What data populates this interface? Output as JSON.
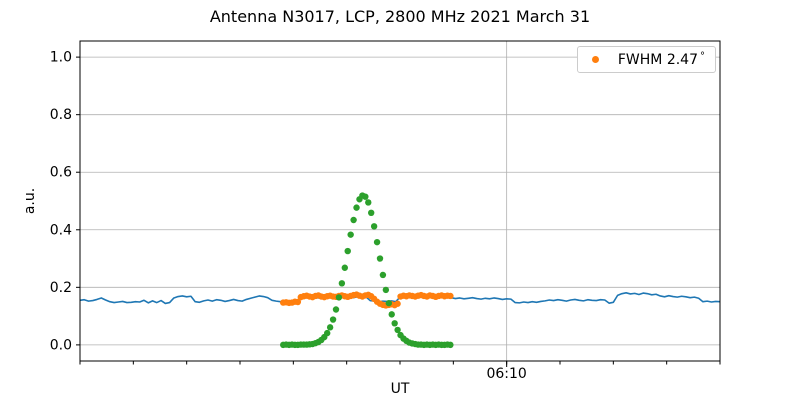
{
  "figure": {
    "title": "Antenna N3017, LCP, 2800 MHz 2021 March 31",
    "background": "#ffffff"
  },
  "legend": {
    "label": "FWHM 2.47",
    "degree_symbol": "°",
    "marker_color": "#ff7f0e",
    "position": "upper-right"
  },
  "chart_data": {
    "type": "line",
    "title": "Antenna N3017, LCP, 2800 MHz 2021 March 31",
    "xlabel": "UT",
    "ylabel": "a.u.",
    "x_unit": "minutes after 06:00 UT",
    "xlim": [
      2.0,
      14.0
    ],
    "ylim": [
      -0.056,
      1.056
    ],
    "grid": true,
    "grid_color": "#b0b0b0",
    "spine_color": "#000000",
    "y_ticks": [
      {
        "value": 0.0,
        "label": "0.0"
      },
      {
        "value": 0.2,
        "label": "0.2"
      },
      {
        "value": 0.4,
        "label": "0.4"
      },
      {
        "value": 0.6,
        "label": "0.6"
      },
      {
        "value": 0.8,
        "label": "0.8"
      },
      {
        "value": 1.0,
        "label": "1.0"
      }
    ],
    "x_axis": {
      "major_ticks": [
        {
          "value": 10.0,
          "label": "06:10"
        }
      ],
      "minor_tick_values": [
        2,
        3,
        4,
        5,
        6,
        7,
        8,
        9,
        10,
        11,
        12,
        13,
        14
      ]
    },
    "series": [
      {
        "name": "raw-signal-line",
        "type": "line",
        "color": "#1f77b4",
        "line_width": 1.6,
        "x_start": 2.0,
        "x_step": 0.08,
        "y": [
          0.155,
          0.157,
          0.152,
          0.154,
          0.158,
          0.163,
          0.156,
          0.15,
          0.147,
          0.149,
          0.151,
          0.147,
          0.148,
          0.15,
          0.149,
          0.155,
          0.146,
          0.153,
          0.147,
          0.154,
          0.144,
          0.147,
          0.163,
          0.168,
          0.17,
          0.167,
          0.169,
          0.15,
          0.148,
          0.153,
          0.156,
          0.152,
          0.157,
          0.155,
          0.151,
          0.154,
          0.158,
          0.154,
          0.152,
          0.158,
          0.162,
          0.166,
          0.17,
          0.168,
          0.164,
          0.155,
          0.152,
          0.15,
          0.153,
          0.15,
          0.149,
          0.151,
          0.165,
          0.166,
          0.168,
          0.164,
          0.163,
          0.166,
          0.168,
          0.165,
          0.164,
          0.166,
          0.168,
          0.166,
          0.164,
          0.167,
          0.169,
          0.167,
          0.154,
          0.152,
          0.15,
          0.152,
          0.151,
          0.153,
          0.15,
          0.166,
          0.168,
          0.165,
          0.167,
          0.169,
          0.166,
          0.164,
          0.167,
          0.168,
          0.166,
          0.169,
          0.167,
          0.164,
          0.161,
          0.163,
          0.16,
          0.162,
          0.164,
          0.161,
          0.159,
          0.162,
          0.16,
          0.163,
          0.161,
          0.158,
          0.16,
          0.159,
          0.147,
          0.146,
          0.149,
          0.147,
          0.15,
          0.148,
          0.151,
          0.153,
          0.156,
          0.154,
          0.157,
          0.155,
          0.152,
          0.156,
          0.158,
          0.155,
          0.153,
          0.157,
          0.155,
          0.154,
          0.157,
          0.156,
          0.145,
          0.148,
          0.172,
          0.178,
          0.181,
          0.177,
          0.179,
          0.175,
          0.18,
          0.178,
          0.174,
          0.176,
          0.17,
          0.167,
          0.171,
          0.168,
          0.166,
          0.169,
          0.167,
          0.164,
          0.166,
          0.162,
          0.15,
          0.152,
          0.149,
          0.151,
          0.15
        ]
      },
      {
        "name": "baseline-fit-dots",
        "type": "scatter",
        "color": "#ff7f0e",
        "marker_radius": 3.2,
        "x_start": 5.81,
        "x_step": 0.055,
        "y": [
          0.147,
          0.148,
          0.146,
          0.147,
          0.15,
          0.149,
          0.166,
          0.169,
          0.171,
          0.168,
          0.166,
          0.17,
          0.172,
          0.168,
          0.166,
          0.169,
          0.171,
          0.168,
          0.167,
          0.17,
          0.172,
          0.169,
          0.167,
          0.17,
          0.173,
          0.175,
          0.171,
          0.168,
          0.172,
          0.174,
          0.169,
          0.16,
          0.15,
          0.143,
          0.139,
          0.137,
          0.139,
          0.141,
          0.138,
          0.143,
          0.168,
          0.171,
          0.169,
          0.172,
          0.17,
          0.168,
          0.171,
          0.173,
          0.17,
          0.168,
          0.172,
          0.17,
          0.167,
          0.17,
          0.172,
          0.169,
          0.171,
          0.17
        ]
      },
      {
        "name": "gaussian-scan-dots",
        "type": "scatter",
        "color": "#2ca02c",
        "marker_radius": 3.2,
        "x_start": 5.81,
        "x_step": 0.055,
        "gaussian_fit": {
          "amplitude": 0.52,
          "center_minutes": 7.3,
          "fwhm_deg": 2.47
        },
        "y": [
          0.0,
          0.001,
          0.0,
          0.001,
          0.0,
          0.0,
          0.001,
          0.001,
          0.001,
          0.002,
          0.003,
          0.006,
          0.01,
          0.017,
          0.027,
          0.041,
          0.061,
          0.088,
          0.123,
          0.165,
          0.214,
          0.268,
          0.326,
          0.383,
          0.434,
          0.477,
          0.506,
          0.519,
          0.515,
          0.495,
          0.459,
          0.412,
          0.357,
          0.3,
          0.243,
          0.191,
          0.145,
          0.106,
          0.075,
          0.052,
          0.034,
          0.022,
          0.014,
          0.008,
          0.005,
          0.003,
          0.001,
          0.001,
          0.0,
          0.001,
          0.0,
          0.001,
          0.0,
          0.001,
          0.0,
          0.0,
          0.001,
          0.0
        ]
      }
    ]
  }
}
